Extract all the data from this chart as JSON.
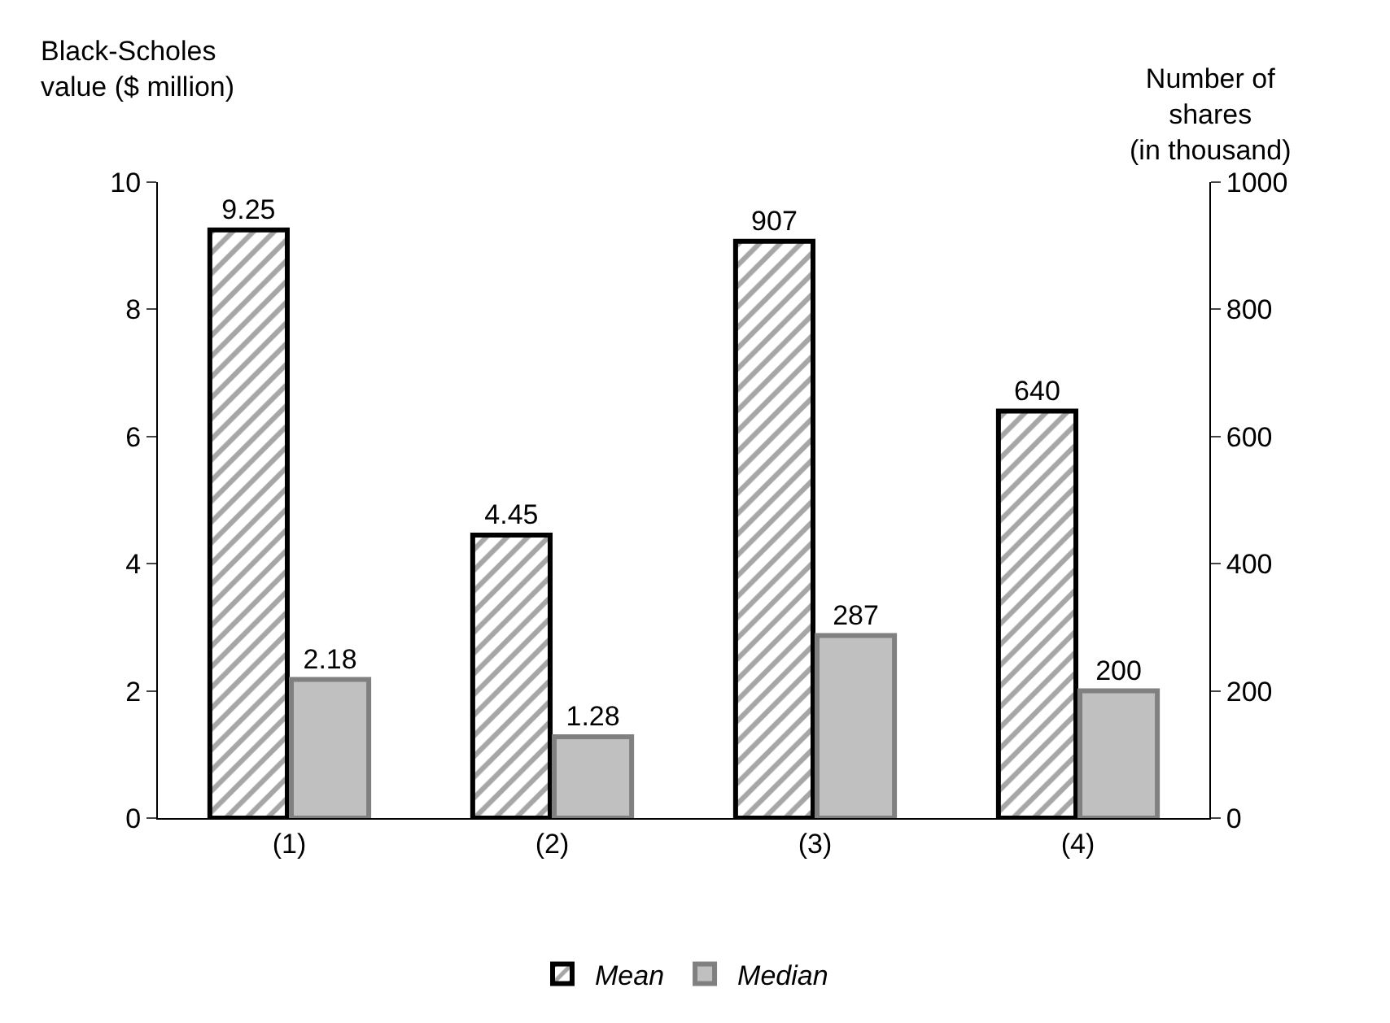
{
  "chart_data": {
    "type": "bar",
    "ylabel": "Black-Scholes value ($ million)",
    "y2label": "Number of\nshares\n(in thousand)",
    "categories": [
      "(1)",
      "(2)",
      "(3)",
      "(4)"
    ],
    "series": [
      {
        "name": "Mean",
        "color": "#000000",
        "values": [
          9.25,
          4.45,
          null,
          null
        ]
      },
      {
        "name": "Median",
        "color": "#c0c0c0",
        "values": [
          2.18,
          1.28,
          null,
          null
        ]
      },
      {
        "color": "#000000",
        "axis": "y2",
        "values": [
          null,
          null,
          907,
          640
        ]
      },
      {
        "color": "#c0c0c0",
        "axis": "y2",
        "values": [
          null,
          null,
          287,
          200
        ]
      }
    ],
    "ylim": [
      0,
      10
    ],
    "yticks": [
      0,
      2,
      4,
      6,
      8,
      10
    ],
    "y2lim": [
      0,
      1000
    ],
    "y2ticks": [
      0,
      200,
      400,
      600,
      800,
      1000
    ],
    "data_labels": true,
    "grid": false,
    "legend": "bottom"
  }
}
